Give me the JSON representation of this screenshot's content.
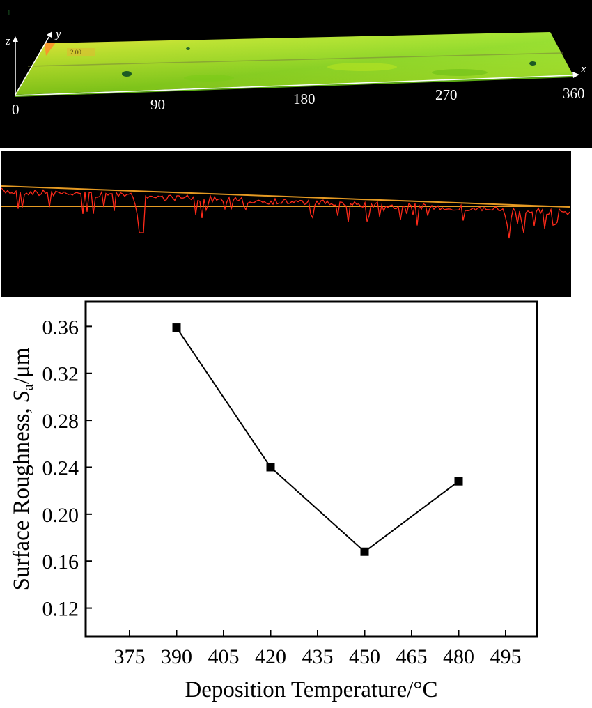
{
  "colors": {
    "surface_low": "#b5d21e",
    "surface_mid": "#9fe61c",
    "surface_high": "#c8f01a",
    "surface_edge": "#ff7a1e",
    "profile_line": "#ff2a1a",
    "reference_line": "#e59a23",
    "chart_line": "#000000",
    "axis": "#000000"
  },
  "surface_panel": {
    "axis_x": "x",
    "axis_y": "y",
    "axis_z": "z",
    "scale_label": "2.00",
    "corner_label": "1",
    "x_ticks": [
      "0",
      "90",
      "180",
      "270",
      "360"
    ]
  },
  "profile_panel": {
    "description_label": ""
  },
  "chart_data": {
    "type": "line",
    "title": "",
    "xlabel": "Deposition Temperature/°C",
    "ylabel_prefix": "Surface Roughness, ",
    "ylabel_symbol": "S",
    "ylabel_subscript": "a",
    "ylabel_unit": "/μm",
    "x_ticks": [
      "375",
      "390",
      "405",
      "420",
      "435",
      "450",
      "465",
      "480",
      "495"
    ],
    "y_ticks": [
      "0.12",
      "0.16",
      "0.20",
      "0.24",
      "0.28",
      "0.32",
      "0.36"
    ],
    "xlim": [
      361,
      505
    ],
    "ylim": [
      0.096,
      0.381
    ],
    "grid": false,
    "legend": "none",
    "marker": "square",
    "series": [
      {
        "x": [
          390,
          420,
          450,
          480
        ],
        "values": [
          0.359,
          0.24,
          0.168,
          0.228
        ]
      }
    ]
  }
}
